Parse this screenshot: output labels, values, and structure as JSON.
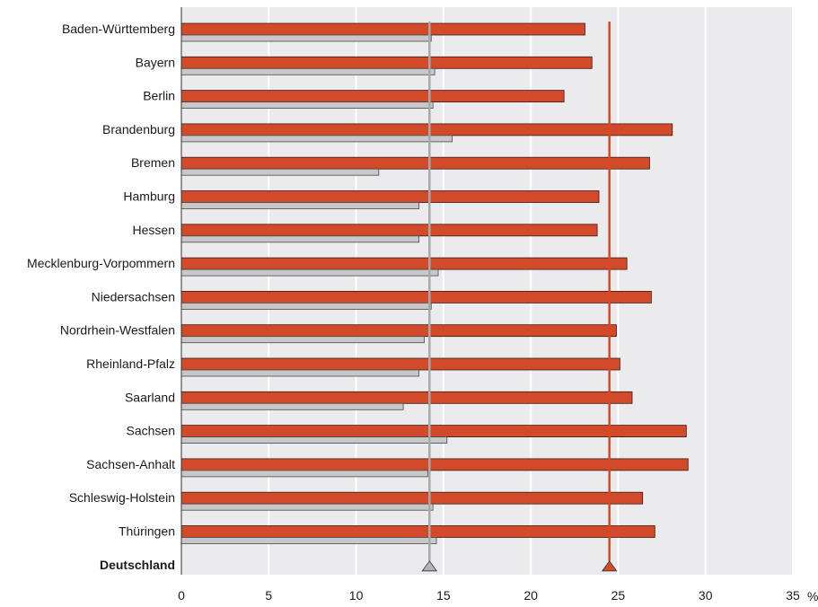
{
  "chart_data": {
    "type": "bar",
    "orientation": "horizontal",
    "categories": [
      "Baden-Württemberg",
      "Bayern",
      "Berlin",
      "Brandenburg",
      "Bremen",
      "Hamburg",
      "Hessen",
      "Mecklenburg-Vorpommern",
      "Niedersachsen",
      "Nordrhein-Westfalen",
      "Rheinland-Pfalz",
      "Saarland",
      "Sachsen",
      "Sachsen-Anhalt",
      "Schleswig-Holstein",
      "Thüringen"
    ],
    "summary_category": "Deutschland",
    "series": [
      {
        "color": "#d24a2a",
        "values": [
          23.1,
          23.5,
          21.9,
          28.1,
          26.8,
          23.9,
          23.8,
          25.5,
          26.9,
          24.9,
          25.1,
          25.8,
          28.9,
          29.0,
          26.4,
          27.1
        ],
        "reference_value": 24.5
      },
      {
        "color": "#c8c8c8",
        "values": [
          14.3,
          14.5,
          14.4,
          15.5,
          11.3,
          13.6,
          13.6,
          14.7,
          14.3,
          13.9,
          13.6,
          12.7,
          15.2,
          14.1,
          14.4,
          14.6
        ],
        "reference_value": 14.2
      }
    ],
    "x_ticks": [
      "0",
      "5",
      "10",
      "15",
      "20",
      "25",
      "30",
      "35"
    ],
    "x_unit": "%",
    "xlim": [
      0,
      35
    ],
    "grid": true,
    "legend": "none"
  }
}
